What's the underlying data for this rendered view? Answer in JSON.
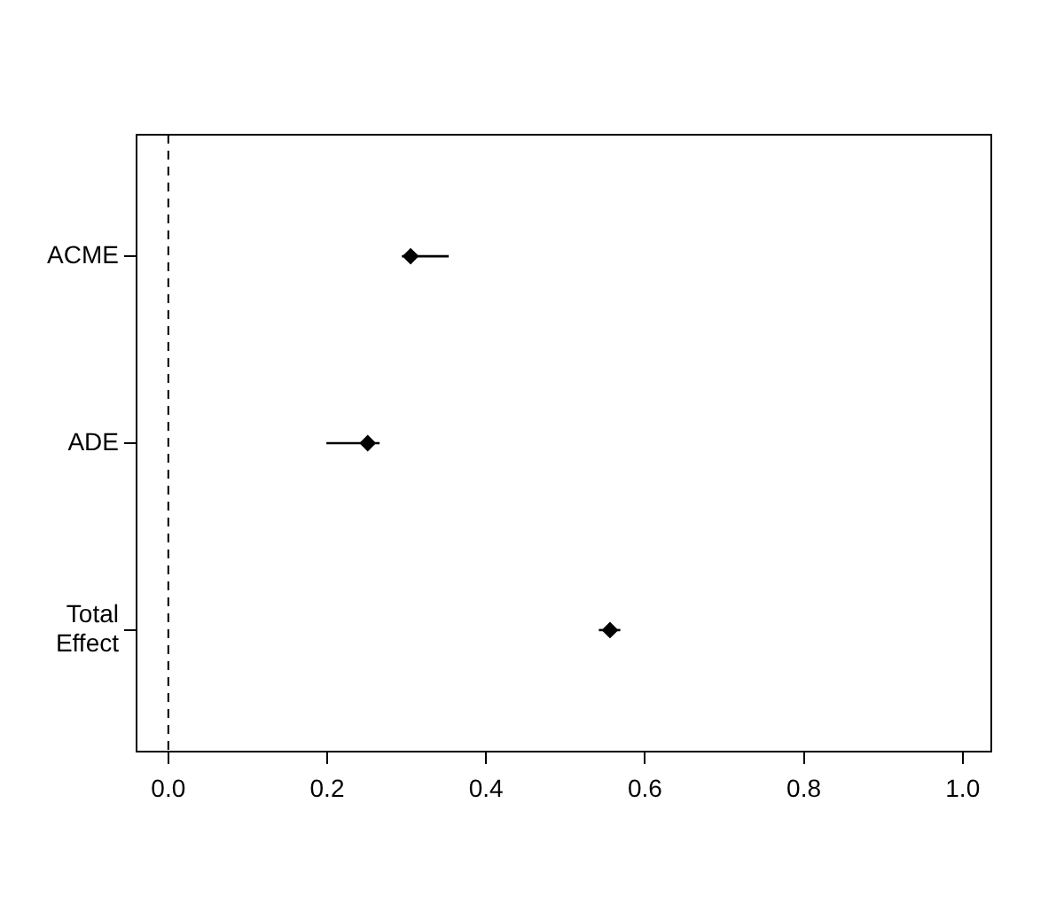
{
  "chart_data": {
    "type": "scatter",
    "orientation": "horizontal",
    "categories": [
      "ACME",
      "ADE",
      "Total Effect"
    ],
    "values": [
      0.305,
      0.251,
      0.556
    ],
    "errors": [
      [
        0.294,
        0.353
      ],
      [
        0.199,
        0.266
      ],
      [
        0.542,
        0.569
      ]
    ],
    "color": "#000000",
    "marker": "diamond",
    "xlim": [
      -0.04,
      1.036
    ],
    "xticks": [
      {
        "value": 0,
        "label": "0.0"
      },
      0.2,
      0.4,
      0.6,
      0.8,
      {
        "value": 1,
        "label": "1.0"
      }
    ],
    "grid": false,
    "legend": false,
    "ref_lines": [
      {
        "axis": "x",
        "value": 0,
        "color": "#000000",
        "line_style": "dashed"
      }
    ]
  }
}
